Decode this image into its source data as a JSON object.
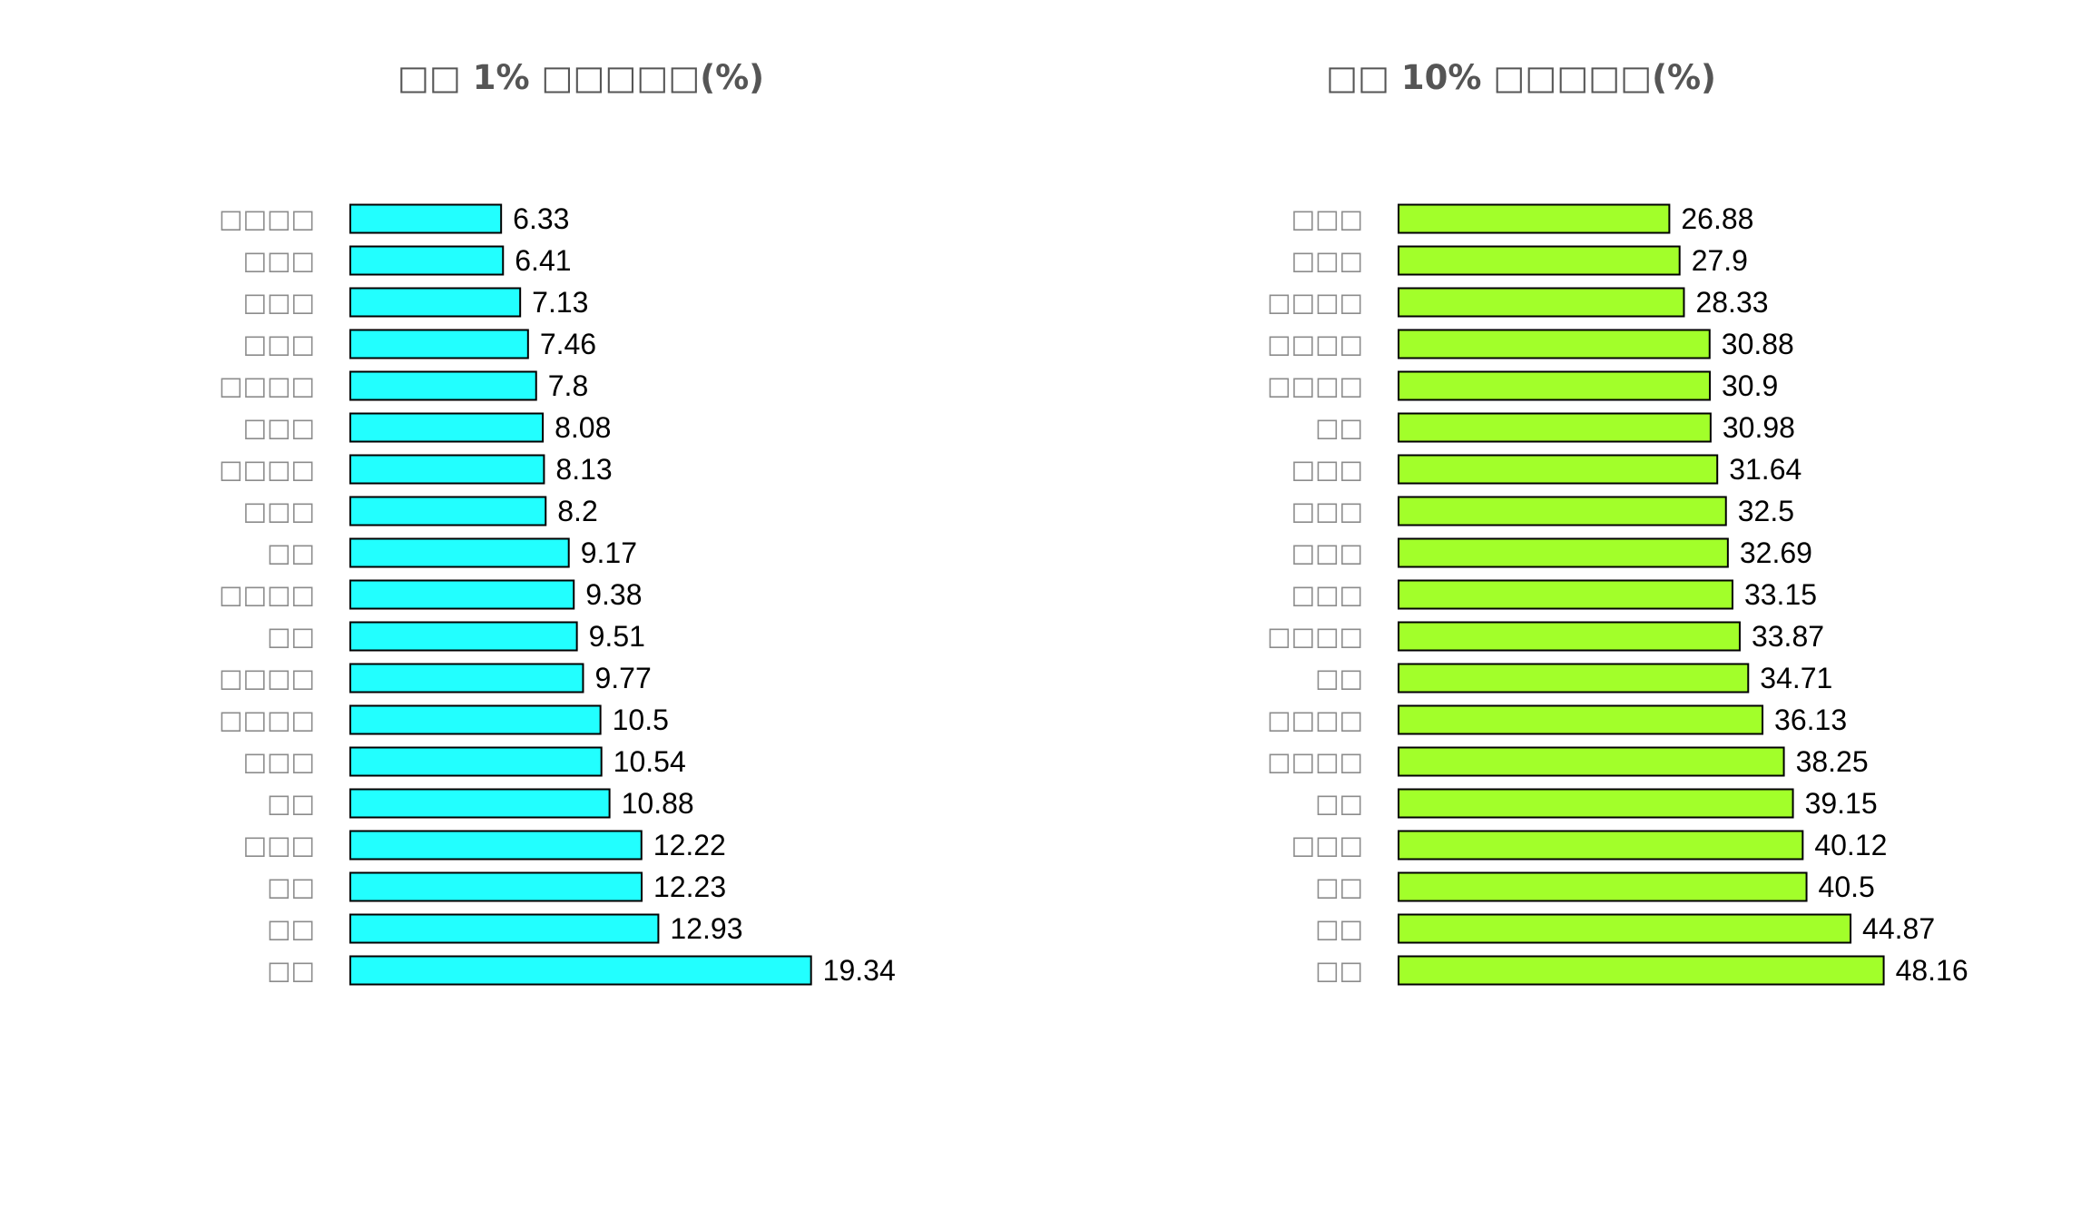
{
  "chart_data": [
    {
      "type": "bar",
      "orientation": "horizontal",
      "title": "□□ 1% □□□□□(%)",
      "categories": [
        "□□",
        "□□",
        "□□",
        "□□□",
        "□□",
        "□□□",
        "□□□□",
        "□□□□",
        "□□",
        "□□□□",
        "□□",
        "□□□",
        "□□□□",
        "□□□",
        "□□□□",
        "□□□",
        "□□□",
        "□□□",
        "□□□□"
      ],
      "values": [
        19.34,
        12.93,
        12.23,
        12.22,
        10.88,
        10.54,
        10.5,
        9.77,
        9.51,
        9.38,
        9.17,
        8.2,
        8.13,
        8.08,
        7.8,
        7.46,
        7.13,
        6.41,
        6.33
      ],
      "value_labels": [
        "19.34",
        "12.93",
        "12.23",
        "12.22",
        "10.88",
        "10.54",
        "10.5",
        "9.77",
        "9.51",
        "9.38",
        "9.17",
        "8.2",
        "8.13",
        "8.08",
        "7.8",
        "7.46",
        "7.13",
        "6.41",
        "6.33"
      ],
      "color": "#22ffff",
      "xlim": [
        0,
        25
      ],
      "xlabel": "",
      "ylabel": "",
      "grid": false,
      "legend": "none"
    },
    {
      "type": "bar",
      "orientation": "horizontal",
      "title": "□□ 10% □□□□□(%)",
      "categories": [
        "□□",
        "□□",
        "□□",
        "□□□",
        "□□",
        "□□□□",
        "□□□□",
        "□□",
        "□□□□",
        "□□□",
        "□□□",
        "□□□",
        "□□□",
        "□□",
        "□□□□",
        "□□□□",
        "□□□□",
        "□□□",
        "□□□"
      ],
      "values": [
        48.16,
        44.87,
        40.5,
        40.12,
        39.15,
        38.25,
        36.13,
        34.71,
        33.87,
        33.15,
        32.69,
        32.5,
        31.64,
        30.98,
        30.9,
        30.88,
        28.33,
        27.9,
        26.88
      ],
      "value_labels": [
        "48.16",
        "44.87",
        "40.5",
        "40.12",
        "39.15",
        "38.25",
        "36.13",
        "34.71",
        "33.87",
        "33.15",
        "32.69",
        "32.5",
        "31.64",
        "30.98",
        "30.9",
        "30.88",
        "28.33",
        "27.9",
        "26.88"
      ],
      "color": "#a2ff2a",
      "xlim": [
        0,
        60
      ],
      "xlabel": "",
      "ylabel": "",
      "grid": false,
      "legend": "none"
    }
  ]
}
